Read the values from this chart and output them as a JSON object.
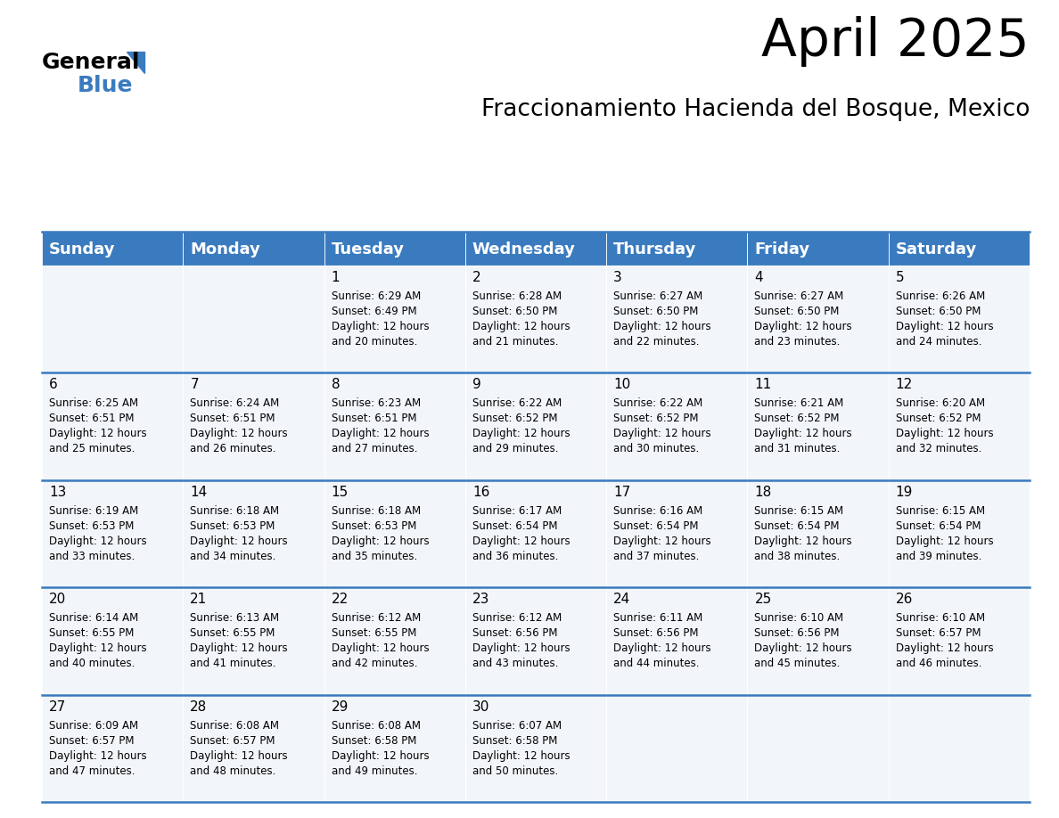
{
  "title": "April 2025",
  "subtitle": "Fraccionamiento Hacienda del Bosque, Mexico",
  "header_bg": "#3a7bbf",
  "header_text": "#ffffff",
  "cell_bg": "#f2f6fa",
  "separator_color": "#3a7bbf",
  "day_names": [
    "Sunday",
    "Monday",
    "Tuesday",
    "Wednesday",
    "Thursday",
    "Friday",
    "Saturday"
  ],
  "days": [
    {
      "day": 1,
      "col": 2,
      "row": 0,
      "sunrise": "6:29 AM",
      "sunset": "6:49 PM",
      "daylight_hours": 12,
      "daylight_minutes": 20
    },
    {
      "day": 2,
      "col": 3,
      "row": 0,
      "sunrise": "6:28 AM",
      "sunset": "6:50 PM",
      "daylight_hours": 12,
      "daylight_minutes": 21
    },
    {
      "day": 3,
      "col": 4,
      "row": 0,
      "sunrise": "6:27 AM",
      "sunset": "6:50 PM",
      "daylight_hours": 12,
      "daylight_minutes": 22
    },
    {
      "day": 4,
      "col": 5,
      "row": 0,
      "sunrise": "6:27 AM",
      "sunset": "6:50 PM",
      "daylight_hours": 12,
      "daylight_minutes": 23
    },
    {
      "day": 5,
      "col": 6,
      "row": 0,
      "sunrise": "6:26 AM",
      "sunset": "6:50 PM",
      "daylight_hours": 12,
      "daylight_minutes": 24
    },
    {
      "day": 6,
      "col": 0,
      "row": 1,
      "sunrise": "6:25 AM",
      "sunset": "6:51 PM",
      "daylight_hours": 12,
      "daylight_minutes": 25
    },
    {
      "day": 7,
      "col": 1,
      "row": 1,
      "sunrise": "6:24 AM",
      "sunset": "6:51 PM",
      "daylight_hours": 12,
      "daylight_minutes": 26
    },
    {
      "day": 8,
      "col": 2,
      "row": 1,
      "sunrise": "6:23 AM",
      "sunset": "6:51 PM",
      "daylight_hours": 12,
      "daylight_minutes": 27
    },
    {
      "day": 9,
      "col": 3,
      "row": 1,
      "sunrise": "6:22 AM",
      "sunset": "6:52 PM",
      "daylight_hours": 12,
      "daylight_minutes": 29
    },
    {
      "day": 10,
      "col": 4,
      "row": 1,
      "sunrise": "6:22 AM",
      "sunset": "6:52 PM",
      "daylight_hours": 12,
      "daylight_minutes": 30
    },
    {
      "day": 11,
      "col": 5,
      "row": 1,
      "sunrise": "6:21 AM",
      "sunset": "6:52 PM",
      "daylight_hours": 12,
      "daylight_minutes": 31
    },
    {
      "day": 12,
      "col": 6,
      "row": 1,
      "sunrise": "6:20 AM",
      "sunset": "6:52 PM",
      "daylight_hours": 12,
      "daylight_minutes": 32
    },
    {
      "day": 13,
      "col": 0,
      "row": 2,
      "sunrise": "6:19 AM",
      "sunset": "6:53 PM",
      "daylight_hours": 12,
      "daylight_minutes": 33
    },
    {
      "day": 14,
      "col": 1,
      "row": 2,
      "sunrise": "6:18 AM",
      "sunset": "6:53 PM",
      "daylight_hours": 12,
      "daylight_minutes": 34
    },
    {
      "day": 15,
      "col": 2,
      "row": 2,
      "sunrise": "6:18 AM",
      "sunset": "6:53 PM",
      "daylight_hours": 12,
      "daylight_minutes": 35
    },
    {
      "day": 16,
      "col": 3,
      "row": 2,
      "sunrise": "6:17 AM",
      "sunset": "6:54 PM",
      "daylight_hours": 12,
      "daylight_minutes": 36
    },
    {
      "day": 17,
      "col": 4,
      "row": 2,
      "sunrise": "6:16 AM",
      "sunset": "6:54 PM",
      "daylight_hours": 12,
      "daylight_minutes": 37
    },
    {
      "day": 18,
      "col": 5,
      "row": 2,
      "sunrise": "6:15 AM",
      "sunset": "6:54 PM",
      "daylight_hours": 12,
      "daylight_minutes": 38
    },
    {
      "day": 19,
      "col": 6,
      "row": 2,
      "sunrise": "6:15 AM",
      "sunset": "6:54 PM",
      "daylight_hours": 12,
      "daylight_minutes": 39
    },
    {
      "day": 20,
      "col": 0,
      "row": 3,
      "sunrise": "6:14 AM",
      "sunset": "6:55 PM",
      "daylight_hours": 12,
      "daylight_minutes": 40
    },
    {
      "day": 21,
      "col": 1,
      "row": 3,
      "sunrise": "6:13 AM",
      "sunset": "6:55 PM",
      "daylight_hours": 12,
      "daylight_minutes": 41
    },
    {
      "day": 22,
      "col": 2,
      "row": 3,
      "sunrise": "6:12 AM",
      "sunset": "6:55 PM",
      "daylight_hours": 12,
      "daylight_minutes": 42
    },
    {
      "day": 23,
      "col": 3,
      "row": 3,
      "sunrise": "6:12 AM",
      "sunset": "6:56 PM",
      "daylight_hours": 12,
      "daylight_minutes": 43
    },
    {
      "day": 24,
      "col": 4,
      "row": 3,
      "sunrise": "6:11 AM",
      "sunset": "6:56 PM",
      "daylight_hours": 12,
      "daylight_minutes": 44
    },
    {
      "day": 25,
      "col": 5,
      "row": 3,
      "sunrise": "6:10 AM",
      "sunset": "6:56 PM",
      "daylight_hours": 12,
      "daylight_minutes": 45
    },
    {
      "day": 26,
      "col": 6,
      "row": 3,
      "sunrise": "6:10 AM",
      "sunset": "6:57 PM",
      "daylight_hours": 12,
      "daylight_minutes": 46
    },
    {
      "day": 27,
      "col": 0,
      "row": 4,
      "sunrise": "6:09 AM",
      "sunset": "6:57 PM",
      "daylight_hours": 12,
      "daylight_minutes": 47
    },
    {
      "day": 28,
      "col": 1,
      "row": 4,
      "sunrise": "6:08 AM",
      "sunset": "6:57 PM",
      "daylight_hours": 12,
      "daylight_minutes": 48
    },
    {
      "day": 29,
      "col": 2,
      "row": 4,
      "sunrise": "6:08 AM",
      "sunset": "6:58 PM",
      "daylight_hours": 12,
      "daylight_minutes": 49
    },
    {
      "day": 30,
      "col": 3,
      "row": 4,
      "sunrise": "6:07 AM",
      "sunset": "6:58 PM",
      "daylight_hours": 12,
      "daylight_minutes": 50
    }
  ],
  "logo_color": "#3a7bbf",
  "title_fontsize": 42,
  "subtitle_fontsize": 19,
  "header_fontsize": 13,
  "day_num_fontsize": 11,
  "cell_text_fontsize": 8.5
}
